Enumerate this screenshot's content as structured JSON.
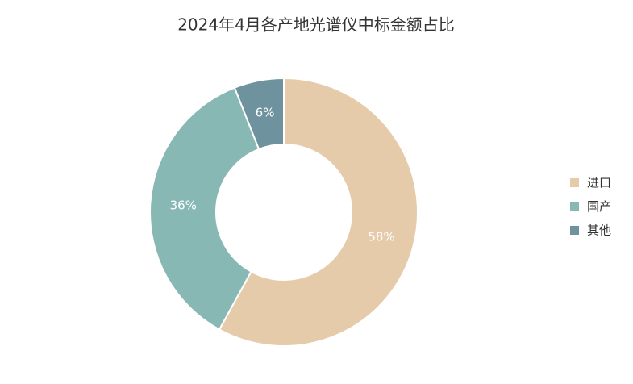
{
  "chart_data": {
    "type": "pie",
    "title": "2024年4月各产地光谱仪中标金额占比",
    "categories": [
      "进口",
      "国产",
      "其他"
    ],
    "values": [
      58,
      36,
      6
    ],
    "value_labels": [
      "58%",
      "36%",
      "6%"
    ],
    "colors": [
      "#e6cbab",
      "#88b8b4",
      "#6e929e"
    ],
    "legend": "right"
  }
}
